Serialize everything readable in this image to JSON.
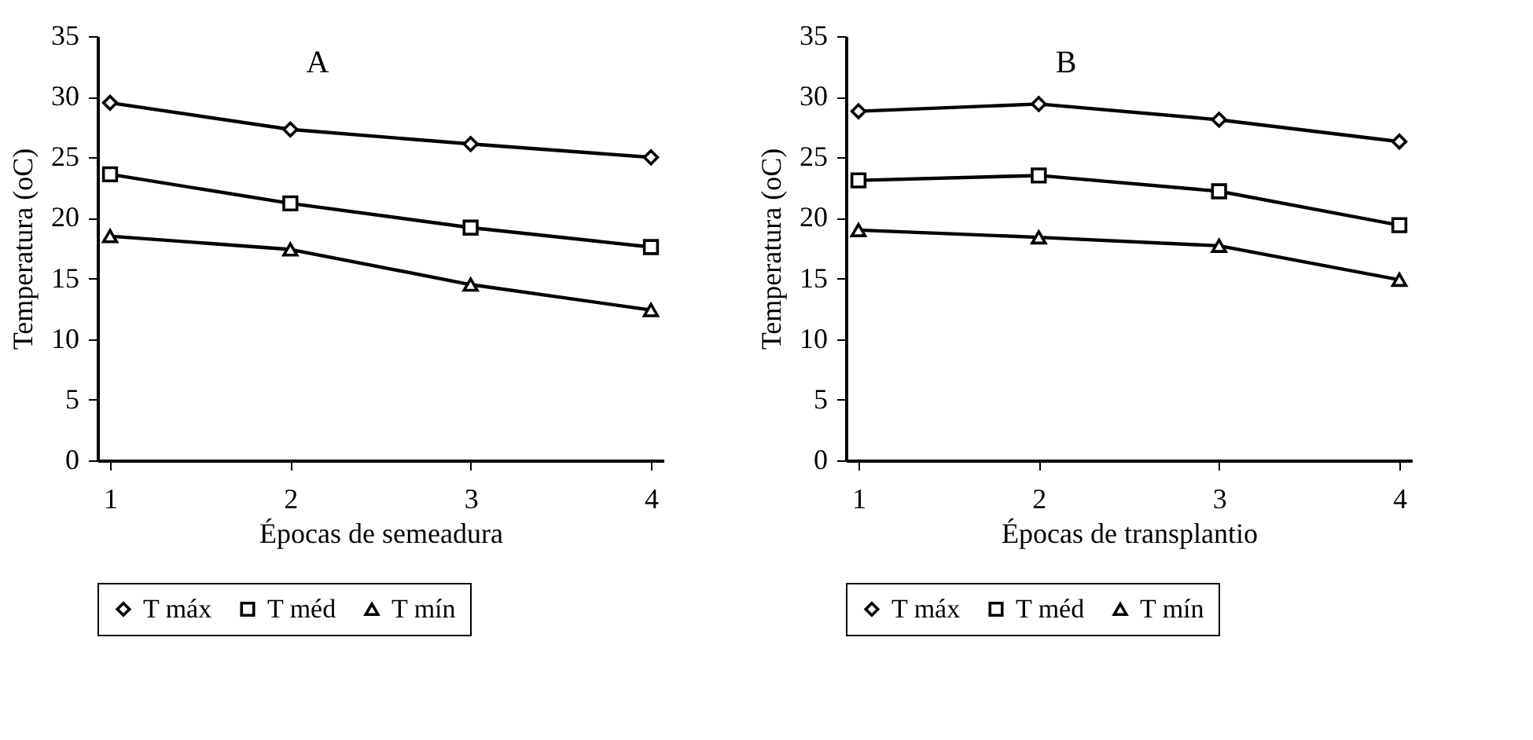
{
  "chart_data": [
    {
      "type": "line",
      "title": "A",
      "xlabel": "Épocas de semeadura",
      "ylabel": "Temperatura (oC)",
      "categories": [
        "1",
        "2",
        "3",
        "4"
      ],
      "ylim": [
        0,
        35
      ],
      "yticks": [
        0,
        5,
        10,
        15,
        20,
        25,
        30,
        35
      ],
      "grid": false,
      "legend": "bottom",
      "series": [
        {
          "name": "T máx",
          "color": "#000000",
          "marker": "diamond",
          "values": [
            29.5,
            27.3,
            26.1,
            25.0
          ]
        },
        {
          "name": "T méd",
          "color": "#000000",
          "marker": "square",
          "values": [
            23.6,
            21.2,
            19.2,
            17.6
          ]
        },
        {
          "name": "T mín",
          "color": "#000000",
          "marker": "triangle",
          "values": [
            18.5,
            17.4,
            14.5,
            12.4
          ]
        }
      ]
    },
    {
      "type": "line",
      "title": "B",
      "xlabel": "Épocas de transplantio",
      "ylabel": "Temperatura (oC)",
      "categories": [
        "1",
        "2",
        "3",
        "4"
      ],
      "ylim": [
        0,
        35
      ],
      "yticks": [
        0,
        5,
        10,
        15,
        20,
        25,
        30,
        35
      ],
      "grid": false,
      "legend": "bottom",
      "series": [
        {
          "name": "T máx",
          "color": "#000000",
          "marker": "diamond",
          "values": [
            28.8,
            29.4,
            28.1,
            26.3
          ]
        },
        {
          "name": "T méd",
          "color": "#000000",
          "marker": "square",
          "values": [
            23.1,
            23.5,
            22.2,
            19.4
          ]
        },
        {
          "name": "T mín",
          "color": "#000000",
          "marker": "triangle",
          "values": [
            19.0,
            18.4,
            17.7,
            14.9
          ]
        }
      ]
    }
  ]
}
